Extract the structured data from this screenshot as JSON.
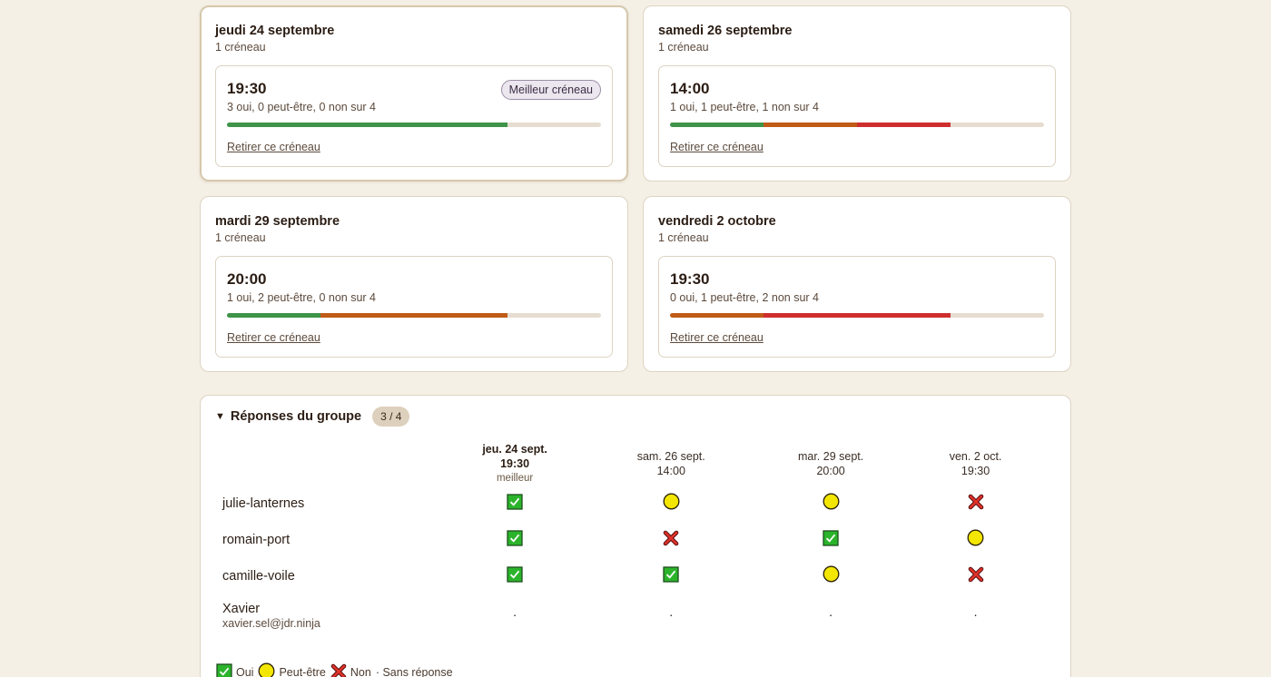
{
  "days": [
    {
      "title": "jeudi 24 septembre",
      "subtitle": "1 créneau",
      "best": true,
      "slot": {
        "time": "19:30",
        "counts": "3 oui, 0 peut-être, 0 non sur 4",
        "yes": 3,
        "maybe": 0,
        "no": 0,
        "total": 4,
        "badge": "Meilleur créneau",
        "remove": "Retirer ce créneau"
      }
    },
    {
      "title": "samedi 26 septembre",
      "subtitle": "1 créneau",
      "best": false,
      "slot": {
        "time": "14:00",
        "counts": "1 oui, 1 peut-être, 1 non sur 4",
        "yes": 1,
        "maybe": 1,
        "no": 1,
        "total": 4,
        "remove": "Retirer ce créneau"
      }
    },
    {
      "title": "mardi 29 septembre",
      "subtitle": "1 créneau",
      "best": false,
      "slot": {
        "time": "20:00",
        "counts": "1 oui, 2 peut-être, 0 non sur 4",
        "yes": 1,
        "maybe": 2,
        "no": 0,
        "total": 4,
        "remove": "Retirer ce créneau"
      }
    },
    {
      "title": "vendredi 2 octobre",
      "subtitle": "1 créneau",
      "best": false,
      "slot": {
        "time": "19:30",
        "counts": "0 oui, 1 peut-être, 2 non sur 4",
        "yes": 0,
        "maybe": 1,
        "no": 2,
        "total": 4,
        "remove": "Retirer ce créneau"
      }
    }
  ],
  "responses": {
    "title": "Réponses du groupe",
    "count": "3 / 4",
    "columns": [
      {
        "date": "jeu. 24 sept.",
        "time": "19:30",
        "note": "meilleur",
        "best": true
      },
      {
        "date": "sam. 26 sept.",
        "time": "14:00",
        "best": false
      },
      {
        "date": "mar. 29 sept.",
        "time": "20:00",
        "best": false
      },
      {
        "date": "ven. 2 oct.",
        "time": "19:30",
        "best": false
      }
    ],
    "rows": [
      {
        "name": "julie-lanternes",
        "answers": [
          "yes",
          "maybe",
          "maybe",
          "no"
        ]
      },
      {
        "name": "romain-port",
        "answers": [
          "yes",
          "no",
          "yes",
          "maybe"
        ]
      },
      {
        "name": "camille-voile",
        "answers": [
          "yes",
          "yes",
          "maybe",
          "no"
        ]
      },
      {
        "name": "Xavier",
        "email": "xavier.sel@jdr.ninja",
        "answers": [
          "none",
          "none",
          "none",
          "none"
        ],
        "none_symbol": "·"
      }
    ],
    "legend": {
      "yes": "Oui",
      "maybe": "Peut-être",
      "no": "Non",
      "none": "· Sans réponse"
    }
  },
  "colors": {
    "yes": "#3e9448",
    "maybe": "#bf5b17",
    "no": "#cf2e2e",
    "background": "#f5f0e6"
  }
}
